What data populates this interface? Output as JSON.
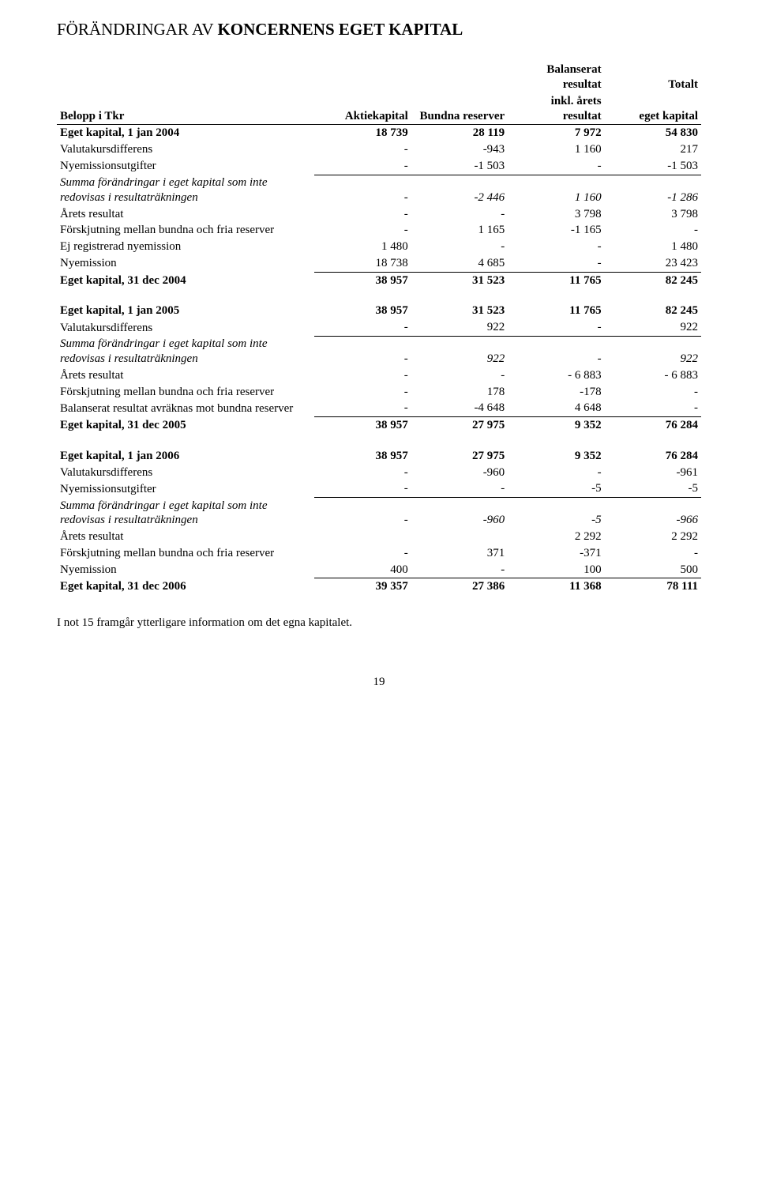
{
  "title_plain": "FÖRÄNDRINGAR AV ",
  "title_bold": "KONCERNENS EGET KAPITAL",
  "header": {
    "col0": "Belopp i Tkr",
    "col1": "Aktiekapital",
    "col2": "Bundna reserver",
    "col3a": "Balanserat resultat",
    "col3b": "inkl. årets resultat",
    "col4a": "Totalt",
    "col4b": "eget kapital"
  },
  "rows": [
    {
      "label": "Eget kapital, 1 jan 2004",
      "v": [
        "18 739",
        "28 119",
        "7 972",
        "54 830"
      ],
      "bold": true
    },
    {
      "label": "Valutakursdifferens",
      "v": [
        "-",
        "-943",
        "1 160",
        "217"
      ]
    },
    {
      "label": "Nyemissionsutgifter",
      "v": [
        "-",
        "-1 503",
        "-",
        "-1 503"
      ],
      "bb": true
    },
    {
      "label": "Summa förändringar i eget kapital som inte redovisas i resultaträkningen",
      "v": [
        "-",
        "-2 446",
        "1 160",
        "-1 286"
      ],
      "italic": true
    },
    {
      "label": "Årets resultat",
      "v": [
        "-",
        "-",
        "3 798",
        "3 798"
      ]
    },
    {
      "label": "Förskjutning mellan bundna och fria reserver",
      "v": [
        "-",
        "1 165",
        "-1 165",
        "-"
      ]
    },
    {
      "label": "Ej registrerad nyemission",
      "v": [
        "1 480",
        "-",
        "-",
        "1 480"
      ]
    },
    {
      "label": "Nyemission",
      "v": [
        "18 738",
        "4 685",
        "-",
        "23 423"
      ],
      "bb": true
    },
    {
      "label": "Eget kapital, 31 dec 2004",
      "v": [
        "38 957",
        "31 523",
        "11 765",
        "82 245"
      ],
      "bold": true
    },
    {
      "gap": true
    },
    {
      "label": "Eget kapital, 1 jan 2005",
      "v": [
        "38 957",
        "31 523",
        "11 765",
        "82 245"
      ],
      "bold": true
    },
    {
      "label": "Valutakursdifferens",
      "v": [
        "-",
        "922",
        "-",
        "922"
      ],
      "bb": true
    },
    {
      "label": "Summa förändringar i eget kapital som inte redovisas i resultaträkningen",
      "v": [
        "-",
        "922",
        "-",
        "922"
      ],
      "italic": true
    },
    {
      "label": "Årets resultat",
      "v": [
        "-",
        "-",
        "- 6 883",
        "- 6 883"
      ]
    },
    {
      "label": "Förskjutning mellan bundna och fria reserver",
      "v": [
        "-",
        "178",
        "-178",
        "-"
      ]
    },
    {
      "label": "Balanserat resultat avräknas mot bundna reserver",
      "v": [
        "-",
        "-4 648",
        "4 648",
        "-"
      ],
      "bb": true
    },
    {
      "label": "Eget kapital, 31 dec 2005",
      "v": [
        "38 957",
        "27 975",
        "9 352",
        "76 284"
      ],
      "bold": true
    },
    {
      "gap": true
    },
    {
      "label": "Eget kapital, 1 jan 2006",
      "v": [
        "38 957",
        "27 975",
        "9 352",
        "76 284"
      ],
      "bold": true
    },
    {
      "label": "Valutakursdifferens",
      "v": [
        "-",
        "-960",
        "-",
        "-961"
      ]
    },
    {
      "label": "Nyemissionsutgifter",
      "v": [
        "-",
        "-",
        "-5",
        "-5"
      ],
      "bb": true
    },
    {
      "label": "Summa förändringar i eget kapital som inte redovisas i resultaträkningen",
      "v": [
        "-",
        "-960",
        "-5",
        "-966"
      ],
      "italic": true
    },
    {
      "label": "Årets resultat",
      "v": [
        "",
        "",
        "2 292",
        "2 292"
      ]
    },
    {
      "label": "Förskjutning mellan bundna och fria reserver",
      "v": [
        "-",
        "371",
        "-371",
        "-"
      ]
    },
    {
      "label": "Nyemission",
      "v": [
        "400",
        "-",
        "100",
        "500"
      ],
      "bb": true
    },
    {
      "label": "Eget kapital, 31 dec 2006",
      "v": [
        "39 357",
        "27 386",
        "11 368",
        "78 111"
      ],
      "bold": true
    }
  ],
  "footnote": "I not 15 framgår ytterligare information om det egna kapitalet.",
  "page_number": "19"
}
